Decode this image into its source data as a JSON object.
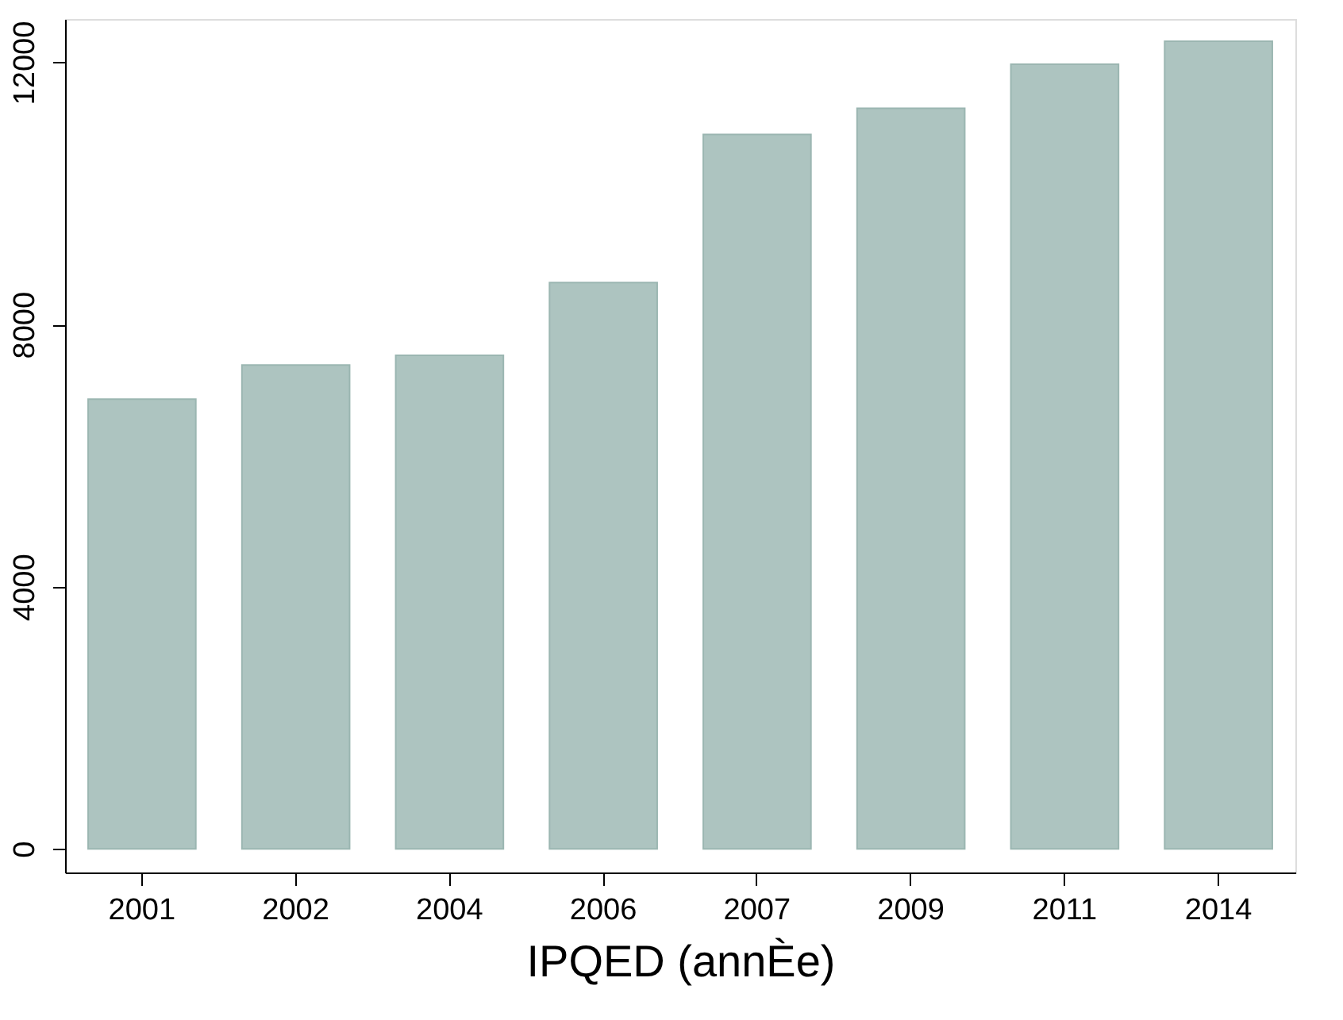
{
  "chart_data": {
    "type": "bar",
    "xlabel": "IPQED (annÈe)",
    "categories": [
      "2001",
      "2002",
      "2004",
      "2006",
      "2007",
      "2009",
      "2011",
      "2014"
    ],
    "values": [
      6860,
      7380,
      7530,
      8640,
      10900,
      11300,
      11970,
      12320
    ],
    "color": "#adc4c0",
    "ylim": [
      -360,
      12660
    ],
    "yticks": [
      0,
      4000,
      8000,
      12000
    ],
    "grid": false
  }
}
